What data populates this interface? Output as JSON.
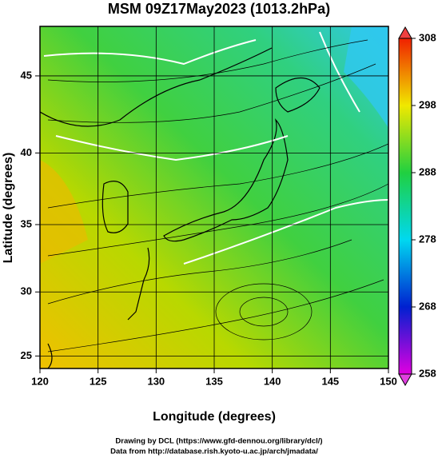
{
  "chart_data": {
    "type": "map",
    "title": "MSM 09Z17May2023 (1013.2hPa)",
    "x_label": "Longitude (degrees)",
    "y_label": "Latitude  (degrees)",
    "xlim": [
      120,
      150
    ],
    "xticks": [
      120,
      125,
      130,
      135,
      140,
      145,
      150
    ],
    "ylim": [
      24,
      48
    ],
    "yticks": [
      25,
      30,
      35,
      40,
      45
    ],
    "grid": true,
    "colorbar": {
      "lim": [
        258,
        308
      ],
      "ticks": [
        258,
        268,
        278,
        288,
        298,
        308
      ]
    },
    "annotations": [
      "Drawing by DCL (https://www.gfd-dennou.org/library/dcl/)",
      "Data from http://database.rish.kyoto-u.ac.jp/arch/jmadata/"
    ]
  }
}
